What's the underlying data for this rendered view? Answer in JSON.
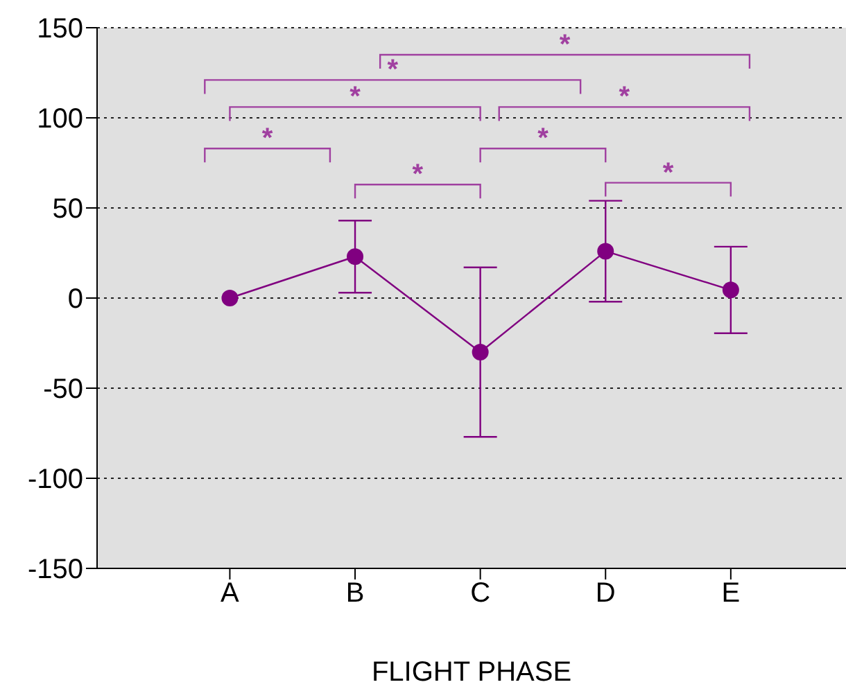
{
  "chart_data": {
    "type": "line",
    "xlabel": "FLIGHT PHASE",
    "categories": [
      "A",
      "B",
      "C",
      "D",
      "E"
    ],
    "values": [
      0,
      23,
      -30,
      26,
      4.5
    ],
    "errors": [
      null,
      20,
      47,
      28,
      24
    ],
    "color": "#800080",
    "marker": "circle",
    "ylim": [
      -150,
      150
    ],
    "yticks": [
      -150,
      -100,
      -50,
      0,
      50,
      100,
      150
    ],
    "grid": "y",
    "annotations": [
      "*",
      "*",
      "*",
      "*",
      "*",
      "*",
      "*",
      "*"
    ]
  }
}
